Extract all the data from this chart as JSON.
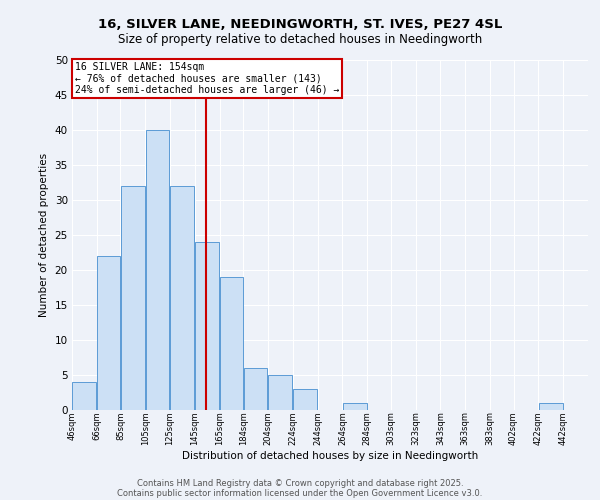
{
  "title1": "16, SILVER LANE, NEEDINGWORTH, ST. IVES, PE27 4SL",
  "title2": "Size of property relative to detached houses in Needingworth",
  "xlabel": "Distribution of detached houses by size in Needingworth",
  "ylabel": "Number of detached properties",
  "bar_values": [
    4,
    22,
    32,
    40,
    32,
    24,
    19,
    6,
    5,
    3,
    0,
    1,
    0,
    0,
    0,
    0,
    0,
    0,
    0,
    1
  ],
  "bar_left_edges": [
    46,
    66,
    85,
    105,
    125,
    145,
    165,
    184,
    204,
    224,
    244,
    264,
    284,
    303,
    323,
    343,
    363,
    383,
    402,
    422
  ],
  "bar_widths": [
    20,
    19,
    20,
    20,
    20,
    20,
    19,
    20,
    20,
    20,
    20,
    20,
    19,
    20,
    20,
    20,
    20,
    19,
    20,
    20
  ],
  "xtick_labels": [
    "46sqm",
    "66sqm",
    "85sqm",
    "105sqm",
    "125sqm",
    "145sqm",
    "165sqm",
    "184sqm",
    "204sqm",
    "224sqm",
    "244sqm",
    "264sqm",
    "284sqm",
    "303sqm",
    "323sqm",
    "343sqm",
    "363sqm",
    "383sqm",
    "402sqm",
    "422sqm",
    "442sqm"
  ],
  "xtick_positions": [
    46,
    66,
    85,
    105,
    125,
    145,
    165,
    184,
    204,
    224,
    244,
    264,
    284,
    303,
    323,
    343,
    363,
    383,
    402,
    422,
    442
  ],
  "bar_color": "#cce0f5",
  "bar_edge_color": "#5b9bd5",
  "red_line_x": 154,
  "annotation_title": "16 SILVER LANE: 154sqm",
  "annotation_line1": "← 76% of detached houses are smaller (143)",
  "annotation_line2": "24% of semi-detached houses are larger (46) →",
  "annotation_box_color": "#ffffff",
  "annotation_border_color": "#cc0000",
  "red_line_color": "#cc0000",
  "ylim": [
    0,
    50
  ],
  "yticks": [
    0,
    5,
    10,
    15,
    20,
    25,
    30,
    35,
    40,
    45,
    50
  ],
  "xlim": [
    46,
    462
  ],
  "background_color": "#eef2f9",
  "footer_line1": "Contains HM Land Registry data © Crown copyright and database right 2025.",
  "footer_line2": "Contains public sector information licensed under the Open Government Licence v3.0."
}
